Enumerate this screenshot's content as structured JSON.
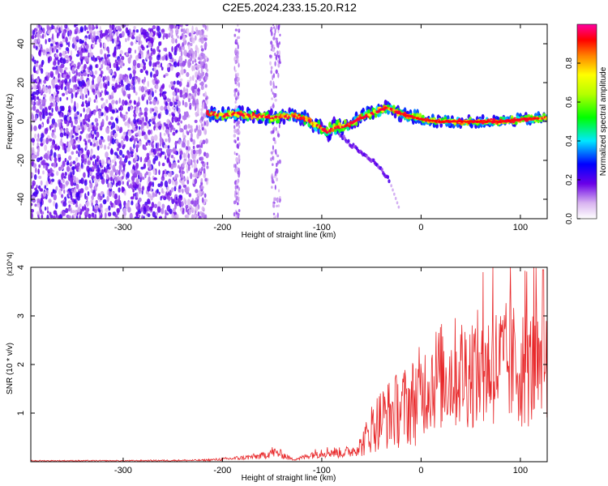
{
  "figure_title": "C2E5.2024.233.15.20.R12",
  "chart_data": [
    {
      "type": "heatmap",
      "title": "",
      "xlabel": "Height of straight line (km)",
      "ylabel": "Frequency (Hz)",
      "xlim": [
        -393,
        127
      ],
      "ylim": [
        -50,
        50
      ],
      "xticks": [
        -300,
        -200,
        -100,
        0,
        100
      ],
      "yticks": [
        -40,
        -20,
        0,
        20,
        40
      ],
      "colorbar": {
        "label": "Normalized spectral amplitude",
        "range": [
          0,
          1
        ],
        "ticks": [
          0.0,
          0.2,
          0.4,
          0.6,
          0.8
        ],
        "tick_labels": [
          "0.0",
          "0.2",
          "0.4",
          "0.6",
          "0.8"
        ],
        "colormap": "rainbow"
      },
      "features": {
        "noise_region_x": [
          -393,
          -215
        ],
        "ridge": {
          "x": [
            -215,
            -200,
            -185,
            -170,
            -150,
            -130,
            -115,
            -105,
            -95,
            -85,
            -75,
            -60,
            -45,
            -35,
            -25,
            -15,
            -5,
            0,
            20,
            40,
            60,
            80,
            100,
            127
          ],
          "y": [
            4,
            3,
            4,
            3,
            2,
            3,
            1,
            -2,
            -5,
            -3,
            -2,
            2,
            5,
            7,
            5,
            3,
            2,
            1,
            0,
            0,
            0,
            0,
            1,
            2
          ]
        },
        "branch": {
          "x": [
            -85,
            -70,
            -55,
            -45,
            -38,
            -32
          ],
          "y": [
            -5,
            -12,
            -18,
            -22,
            -26,
            -30
          ]
        }
      }
    },
    {
      "type": "line",
      "title": "",
      "xlabel": "Height of straight line (km)",
      "ylabel": "SNR (10 * v/v)",
      "y_multiplier": "(x10^4)",
      "xlim": [
        -393,
        127
      ],
      "ylim": [
        0,
        4
      ],
      "xticks": [
        -300,
        -200,
        -100,
        0,
        100
      ],
      "yticks": [
        1,
        2,
        3,
        4
      ],
      "color": "#e8282a",
      "series": [
        {
          "x": [
            -393,
            -300,
            -220,
            -200,
            -180,
            -160,
            -150,
            -140,
            -130,
            -120,
            -110,
            -100,
            -90,
            -80,
            -70,
            -60,
            -55,
            -50,
            -45,
            -40,
            -35,
            -30,
            -25,
            -20,
            -15,
            -10,
            -5,
            0,
            5,
            10,
            20,
            30,
            40,
            50,
            60,
            70,
            80,
            90,
            100,
            110,
            115,
            120,
            124,
            127
          ],
          "y": [
            0.02,
            0.02,
            0.03,
            0.05,
            0.08,
            0.12,
            0.2,
            0.15,
            0.05,
            0.08,
            0.15,
            0.2,
            0.2,
            0.18,
            0.22,
            0.35,
            0.5,
            0.7,
            0.8,
            0.9,
            0.95,
            1.0,
            1.05,
            1.1,
            1.15,
            1.2,
            1.3,
            1.4,
            1.55,
            1.7,
            1.75,
            1.8,
            1.85,
            1.9,
            1.9,
            1.95,
            2.0,
            2.0,
            1.95,
            1.9,
            2.0,
            1.7,
            1.2,
            1.5
          ]
        }
      ]
    }
  ]
}
